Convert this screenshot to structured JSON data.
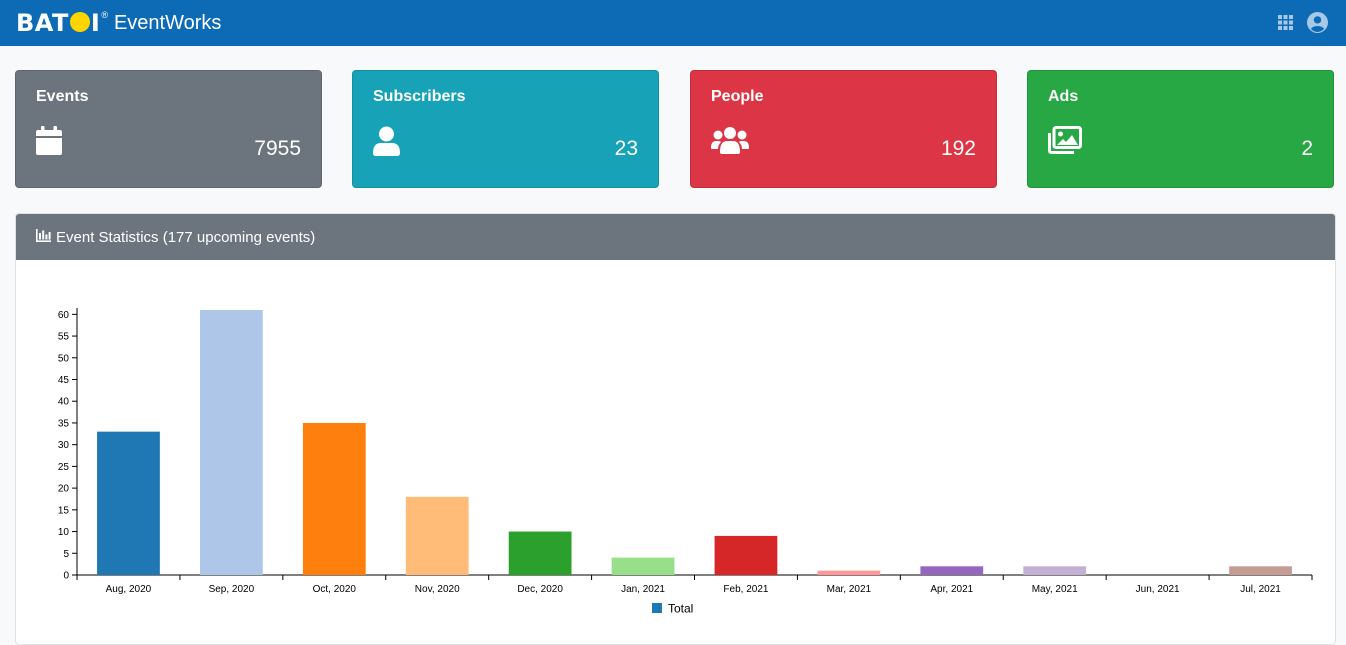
{
  "header": {
    "brand": "BATOI",
    "brand_mark_left": "BAT",
    "brand_mark_right": "I",
    "app_name": "EventWorks",
    "icons": [
      "grid-icon",
      "user-circle-icon"
    ]
  },
  "cards": [
    {
      "label": "Events",
      "value": "7955",
      "icon": "calendar-icon",
      "color": "#6c757d"
    },
    {
      "label": "Subscribers",
      "value": "23",
      "icon": "user-icon",
      "color": "#17a2b8"
    },
    {
      "label": "People",
      "value": "192",
      "icon": "users-icon",
      "color": "#dc3545"
    },
    {
      "label": "Ads",
      "value": "2",
      "icon": "images-icon",
      "color": "#28a745"
    }
  ],
  "panel": {
    "title": "Event Statistics (177 upcoming events)",
    "icon": "chart-bar-icon"
  },
  "chart_data": {
    "type": "bar",
    "categories": [
      "Aug, 2020",
      "Sep, 2020",
      "Oct, 2020",
      "Nov, 2020",
      "Dec, 2020",
      "Jan, 2021",
      "Feb, 2021",
      "Mar, 2021",
      "Apr, 2021",
      "May, 2021",
      "Jun, 2021",
      "Jul, 2021"
    ],
    "series": [
      {
        "name": "Total",
        "values": [
          33,
          61,
          35,
          18,
          10,
          4,
          9,
          1,
          2,
          2,
          0,
          2
        ]
      }
    ],
    "bar_colors": [
      "#1f77b4",
      "#aec7e8",
      "#ff7f0e",
      "#ffbb78",
      "#2ca02c",
      "#98df8a",
      "#d62728",
      "#ff9896",
      "#9467bd",
      "#c5b0d5",
      "#8c564b",
      "#c49c94"
    ],
    "legend_color": "#1f77b4",
    "yticks": [
      0,
      5,
      10,
      15,
      20,
      25,
      30,
      35,
      40,
      45,
      50,
      55,
      60
    ],
    "ylim": [
      0,
      61
    ],
    "legend_position": "bottom-center",
    "grid": false
  }
}
